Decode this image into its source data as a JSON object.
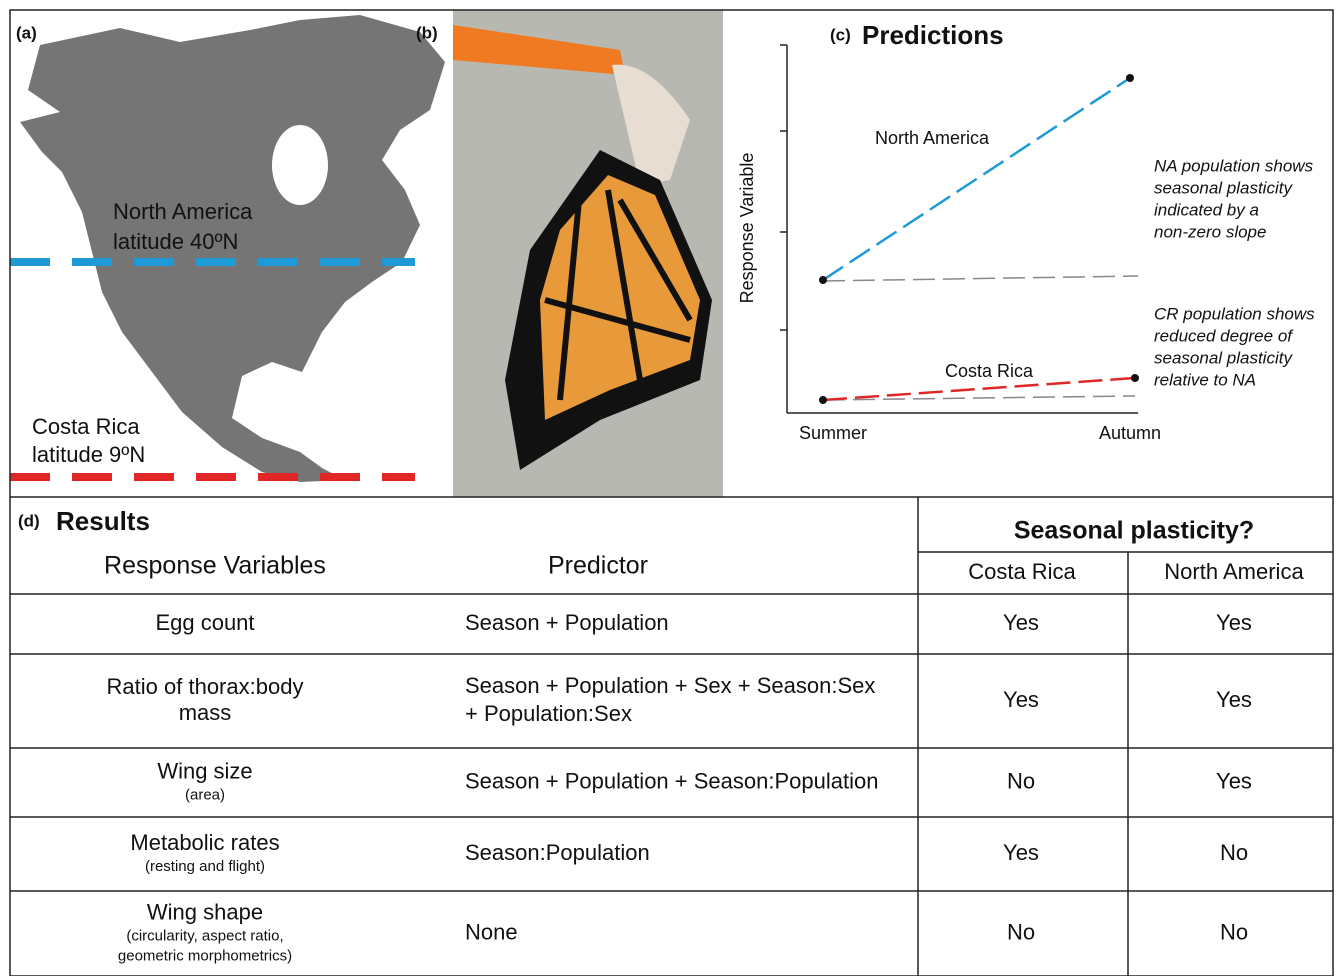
{
  "panels": {
    "a": {
      "label": "(a)",
      "north": {
        "name": "North America",
        "latitude": "latitude 40ºN"
      },
      "south": {
        "name": "Costa Rica",
        "latitude": "latitude 9ºN"
      }
    },
    "b": {
      "label": "(b)"
    },
    "c": {
      "label": "(c)",
      "title": "Predictions",
      "y_axis": "Response Variable",
      "x_labels": [
        "Summer",
        "Autumn"
      ],
      "line_labels": [
        "North America",
        "Costa Rica"
      ],
      "notes": [
        [
          "NA population shows",
          "seasonal plasticity",
          "indicated by a",
          "non-zero slope"
        ],
        [
          "CR population shows",
          "reduced degree of",
          "seasonal plasticity",
          "relative to NA"
        ]
      ]
    }
  },
  "table": {
    "label": "(d)",
    "title": "Results",
    "headers": {
      "response": "Response Variables",
      "predictor": "Predictor",
      "group": "Seasonal plasticity?",
      "populations": [
        "Costa Rica",
        "North America"
      ]
    },
    "rows": [
      {
        "response": [
          "Egg count"
        ],
        "predictor": [
          "Season + Population"
        ],
        "costa_rica": "Yes",
        "north_america": "Yes"
      },
      {
        "response": [
          "Ratio of thorax:body",
          "mass"
        ],
        "predictor": [
          "Season + Population + Sex + Season:Sex",
          "+ Population:Sex"
        ],
        "costa_rica": "Yes",
        "north_america": "Yes"
      },
      {
        "response": [
          "Wing size"
        ],
        "note": [
          "(area)"
        ],
        "predictor": [
          "Season + Population + Season:Population"
        ],
        "costa_rica": "No",
        "north_america": "Yes"
      },
      {
        "response": [
          "Metabolic rates"
        ],
        "note": [
          "(resting and flight)"
        ],
        "predictor": [
          "Season:Population"
        ],
        "costa_rica": "Yes",
        "north_america": "No"
      },
      {
        "response": [
          "Wing shape"
        ],
        "note": [
          "(circularity, aspect ratio,",
          "geometric morphometrics)"
        ],
        "predictor": [
          "None"
        ],
        "costa_rica": "No",
        "north_america": "No"
      }
    ]
  }
}
